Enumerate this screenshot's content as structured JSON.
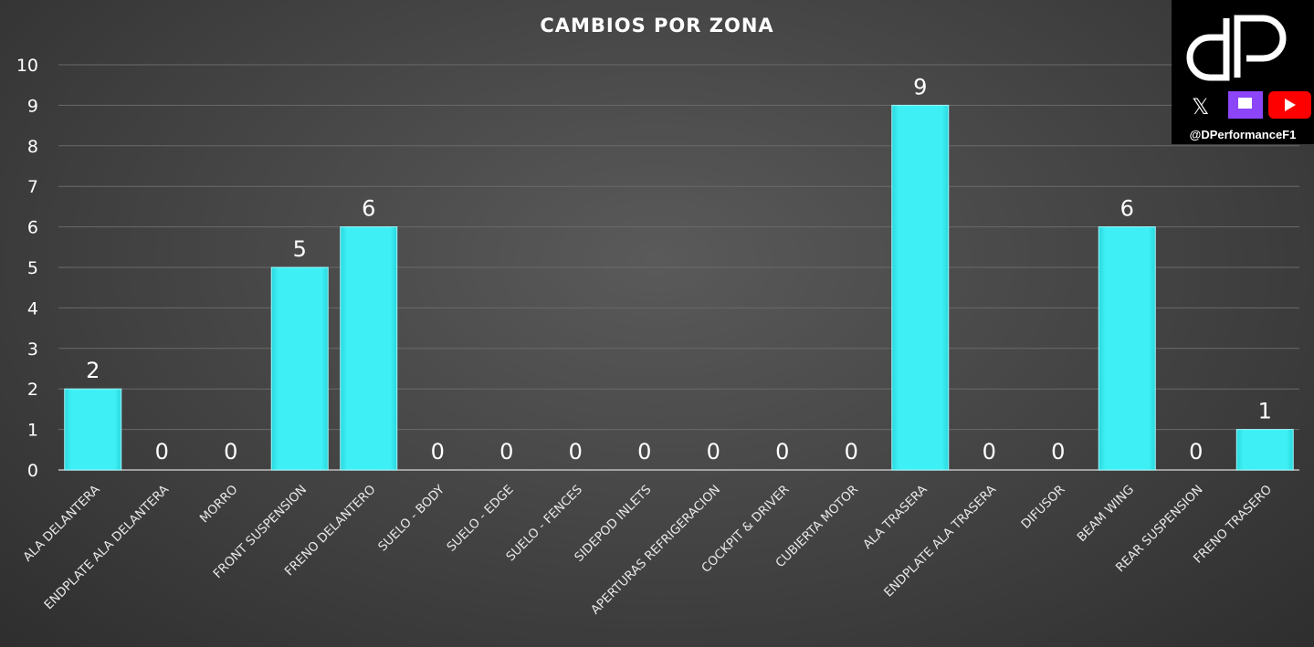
{
  "chart_data": {
    "type": "bar",
    "title": "CAMBIOS POR ZONA",
    "categories": [
      "ALA DELANTERA",
      "ENDPLATE ALA DELANTERA",
      "MORRO",
      "FRONT SUSPENSION",
      "FRENO DELANTERO",
      "SUELO - BODY",
      "SUELO  - EDGE",
      "SUELO - FENCES",
      "SIDEPOD INLETS",
      "APERTURAS REFRIGERACION",
      "COCKPIT & DRIVER",
      "CUBIERTA MOTOR",
      "ALA TRASERA",
      "ENDPLATE ALA TRASERA",
      "DIFUSOR",
      "BEAM WING",
      "REAR SUSPENSION",
      "FRENO TRASERO"
    ],
    "values": [
      2,
      0,
      0,
      5,
      6,
      0,
      0,
      0,
      0,
      0,
      0,
      0,
      9,
      0,
      0,
      6,
      0,
      1
    ],
    "ylim": [
      0,
      10
    ],
    "yticks": [
      0,
      1,
      2,
      3,
      4,
      5,
      6,
      7,
      8,
      9,
      10
    ],
    "grid": true,
    "data_labels": true,
    "bar_color": "#3ef0f5"
  },
  "logo": {
    "text": "dP",
    "handle": "@DPerformanceF1",
    "icons": [
      "x-icon",
      "twitch-icon",
      "youtube-icon"
    ],
    "twitch_color": "#8c45f7",
    "youtube_color": "#ff0000"
  }
}
